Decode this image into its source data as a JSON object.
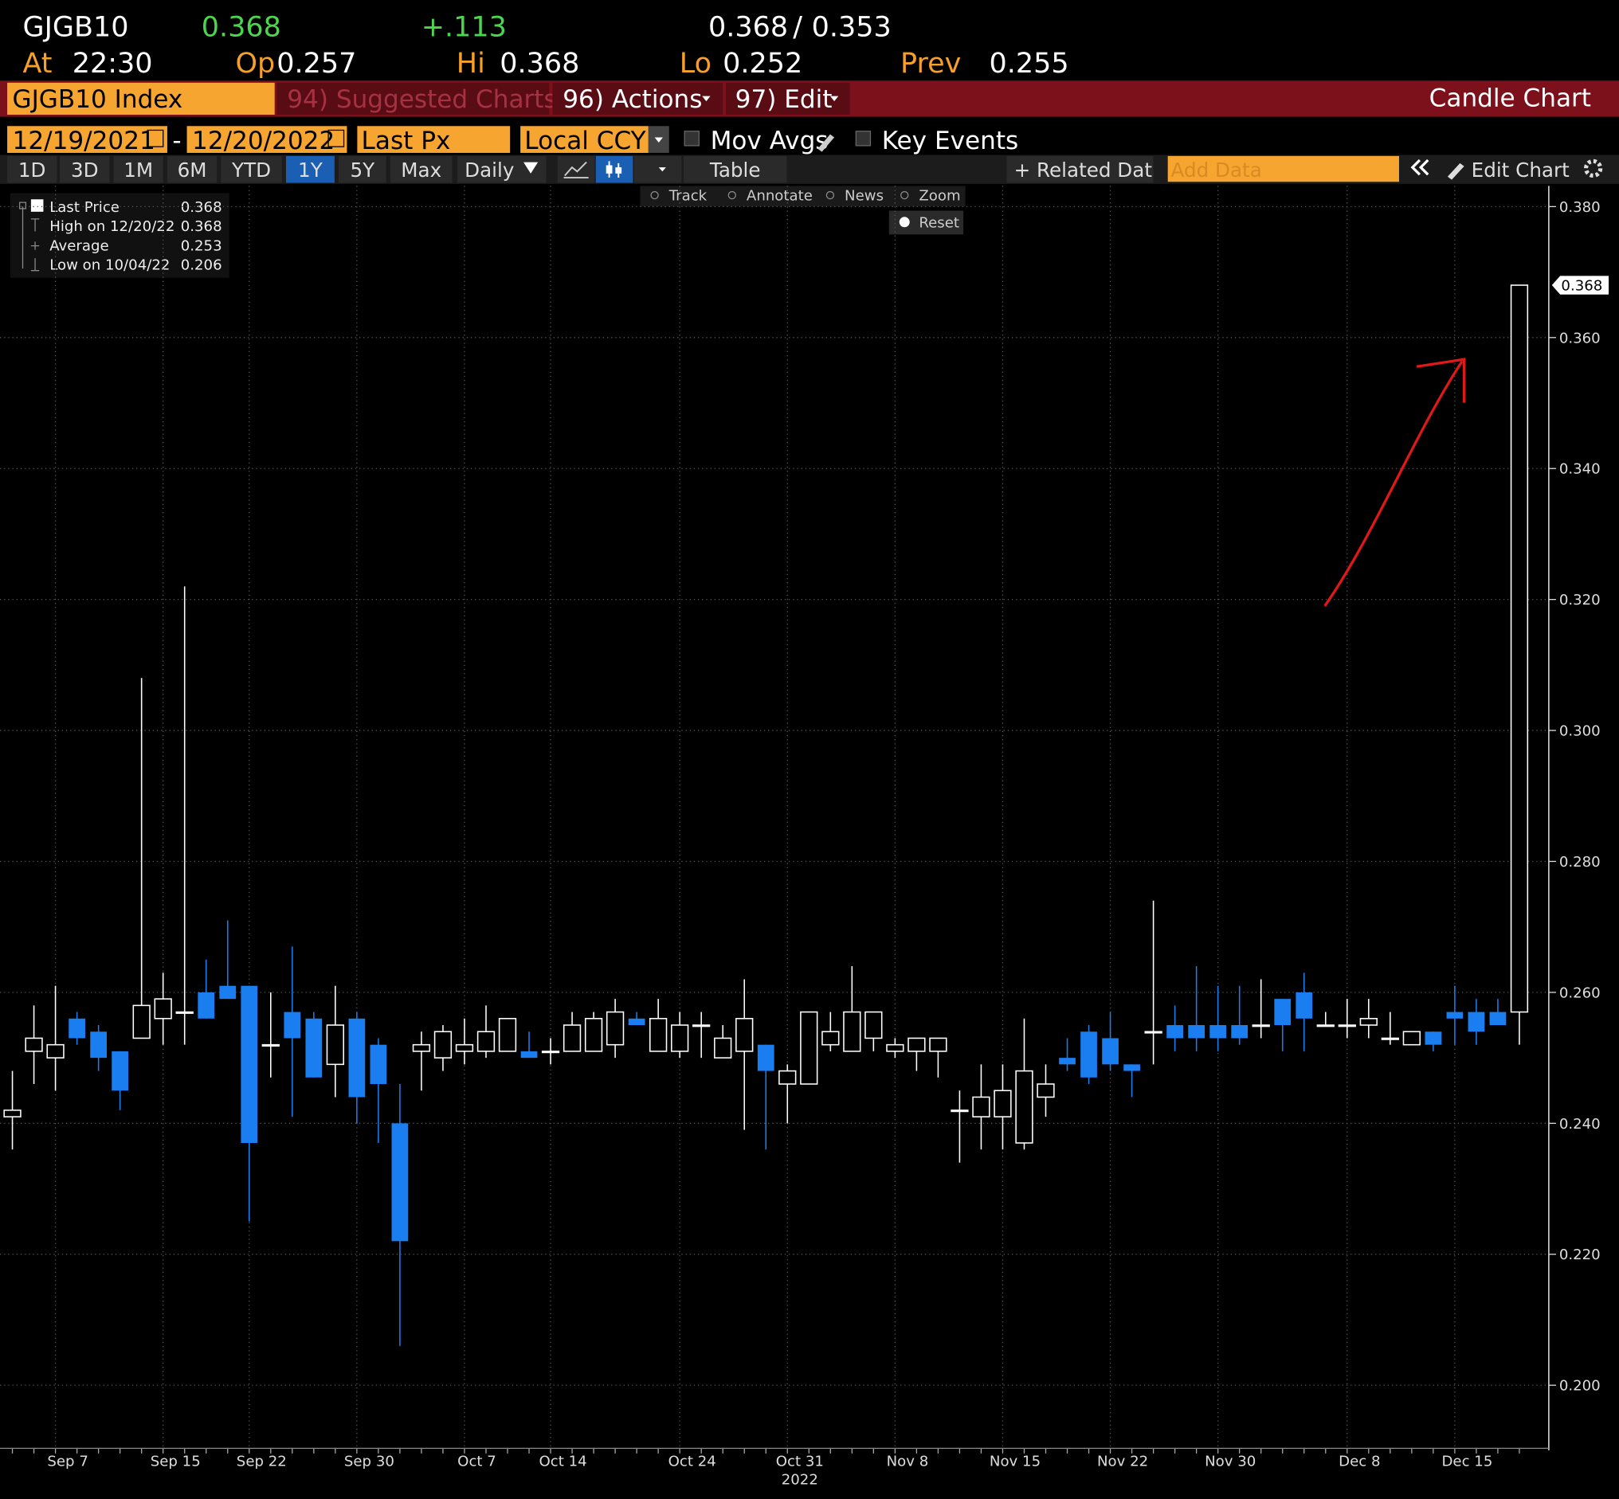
{
  "header": {
    "ticker": "GJGB10",
    "last": "0.368",
    "change": "+.113",
    "bid": "0.368",
    "sep": "/",
    "ask": "0.353",
    "at_label": "At",
    "time": "22:30",
    "op_label": "Op",
    "open": "0.257",
    "hi_label": "Hi",
    "high": "0.368",
    "lo_label": "Lo",
    "low": "0.252",
    "prev_label": "Prev",
    "prev": "0.255"
  },
  "toolbar": {
    "security": "GJGB10 Index",
    "suggested": "94) Suggested Charts",
    "actions": "96) Actions",
    "edit": "97) Edit",
    "chart_kind": "Candle Chart",
    "start_date": "12/19/2021",
    "date_separator": "-",
    "end_date": "12/20/2022",
    "field": "Last Px",
    "currency": "Local CCY",
    "mov_avgs": "Mov Avgs",
    "key_events": "Key Events",
    "ranges": [
      "1D",
      "3D",
      "1M",
      "6M",
      "YTD",
      "1Y",
      "5Y",
      "Max"
    ],
    "active_range": 5,
    "frequency": "Daily",
    "table": "Table",
    "related": "+ Related Data",
    "add_data": "Add Data",
    "edit_chart": "Edit Chart",
    "tools": [
      "Track",
      "Annotate",
      "News",
      "Zoom"
    ],
    "reset": "Reset"
  },
  "legend": [
    {
      "label": "Last Price",
      "value": "0.368"
    },
    {
      "label": "High on 12/20/22",
      "value": "0.368"
    },
    {
      "label": "Average",
      "value": "0.253"
    },
    {
      "label": "Low on 10/04/22",
      "value": "0.206"
    }
  ],
  "chart_data": {
    "type": "candlestick",
    "categories": [
      null,
      null,
      "Sep 7",
      null,
      null,
      null,
      null,
      "Sep 15",
      null,
      null,
      null,
      "Sep 22",
      null,
      null,
      null,
      null,
      "Sep 30",
      null,
      null,
      null,
      null,
      "Oct 7",
      null,
      null,
      null,
      "Oct 14",
      null,
      null,
      null,
      null,
      null,
      "Oct 24",
      null,
      null,
      null,
      null,
      "Oct 31",
      null,
      null,
      null,
      null,
      "Nov 8",
      null,
      null,
      null,
      null,
      "Nov 15",
      null,
      null,
      null,
      null,
      "Nov 22",
      null,
      null,
      null,
      null,
      "Nov 30",
      null,
      null,
      null,
      null,
      null,
      "Dec 8",
      null,
      null,
      null,
      null,
      "Dec 15",
      null,
      null,
      null
    ],
    "year_label": "2022",
    "open": [
      0.241,
      0.251,
      0.25,
      0.256,
      0.254,
      0.251,
      0.253,
      0.256,
      0.257,
      0.26,
      0.261,
      0.261,
      0.252,
      0.257,
      0.256,
      0.249,
      0.256,
      0.252,
      0.24,
      0.251,
      0.25,
      0.251,
      0.251,
      0.251,
      0.251,
      0.251,
      0.251,
      0.251,
      0.252,
      0.256,
      0.251,
      0.251,
      0.255,
      0.25,
      0.251,
      0.252,
      0.246,
      0.246,
      0.252,
      0.251,
      0.253,
      0.251,
      0.251,
      0.251,
      0.242,
      0.241,
      0.241,
      0.237,
      0.244,
      0.25,
      0.254,
      0.253,
      0.249,
      0.254,
      0.255,
      0.255,
      0.255,
      0.255,
      0.255,
      0.259,
      0.26,
      0.255,
      0.255,
      0.255,
      0.253,
      0.252,
      0.254,
      0.257,
      0.257,
      0.257,
      0.257
    ],
    "high": [
      0.248,
      0.258,
      0.261,
      0.257,
      0.255,
      0.251,
      0.308,
      0.263,
      0.322,
      0.265,
      0.271,
      0.261,
      0.26,
      0.267,
      0.257,
      0.261,
      0.257,
      0.253,
      0.246,
      0.254,
      0.255,
      0.256,
      0.258,
      0.256,
      0.254,
      0.253,
      0.257,
      0.257,
      0.259,
      0.257,
      0.259,
      0.257,
      0.257,
      0.255,
      0.262,
      0.252,
      0.249,
      0.257,
      0.257,
      0.264,
      0.257,
      0.253,
      0.253,
      0.253,
      0.245,
      0.249,
      0.249,
      0.256,
      0.249,
      0.253,
      0.255,
      0.257,
      0.249,
      0.274,
      0.258,
      0.264,
      0.261,
      0.261,
      0.262,
      0.259,
      0.263,
      0.257,
      0.259,
      0.259,
      0.257,
      0.254,
      0.254,
      0.261,
      0.259,
      0.259,
      0.368
    ],
    "low": [
      0.236,
      0.246,
      0.245,
      0.252,
      0.248,
      0.242,
      0.253,
      0.252,
      0.252,
      0.256,
      0.259,
      0.225,
      0.247,
      0.241,
      0.247,
      0.244,
      0.24,
      0.237,
      0.206,
      0.245,
      0.248,
      0.249,
      0.25,
      0.251,
      0.25,
      0.249,
      0.251,
      0.251,
      0.25,
      0.255,
      0.251,
      0.25,
      0.25,
      0.25,
      0.239,
      0.236,
      0.24,
      0.246,
      0.251,
      0.251,
      0.251,
      0.25,
      0.248,
      0.247,
      0.234,
      0.236,
      0.236,
      0.236,
      0.241,
      0.248,
      0.246,
      0.248,
      0.244,
      0.249,
      0.251,
      0.251,
      0.251,
      0.252,
      0.253,
      0.251,
      0.251,
      0.255,
      0.253,
      0.253,
      0.252,
      0.252,
      0.251,
      0.252,
      0.252,
      0.255,
      0.252
    ],
    "close": [
      0.242,
      0.253,
      0.252,
      0.253,
      0.25,
      0.245,
      0.258,
      0.259,
      0.257,
      0.256,
      0.259,
      0.237,
      0.252,
      0.253,
      0.247,
      0.255,
      0.244,
      0.246,
      0.222,
      0.252,
      0.254,
      0.252,
      0.254,
      0.256,
      0.25,
      0.251,
      0.255,
      0.256,
      0.257,
      0.255,
      0.256,
      0.255,
      0.255,
      0.253,
      0.256,
      0.248,
      0.248,
      0.257,
      0.254,
      0.257,
      0.257,
      0.252,
      0.253,
      0.253,
      0.242,
      0.244,
      0.245,
      0.248,
      0.246,
      0.249,
      0.247,
      0.249,
      0.248,
      0.254,
      0.253,
      0.253,
      0.253,
      0.253,
      0.255,
      0.255,
      0.256,
      0.255,
      0.255,
      0.256,
      0.253,
      0.254,
      0.252,
      0.256,
      0.254,
      0.255,
      0.368
    ],
    "up_color": "#ffffff",
    "down_color": "#1a7df0",
    "ylim": [
      0.191,
      0.383
    ],
    "yticks": [
      {
        "value": 0.2,
        "label": "0.200"
      },
      {
        "value": 0.22,
        "label": "0.220"
      },
      {
        "value": 0.24,
        "label": "0.240"
      },
      {
        "value": 0.26,
        "label": "0.260"
      },
      {
        "value": 0.28,
        "label": "0.280"
      },
      {
        "value": 0.3,
        "label": "0.300"
      },
      {
        "value": 0.32,
        "label": "0.320"
      },
      {
        "value": 0.34,
        "label": "0.340"
      },
      {
        "value": 0.36,
        "label": "0.360"
      },
      {
        "value": 0.38,
        "label": "0.380"
      }
    ],
    "grid": true
  }
}
